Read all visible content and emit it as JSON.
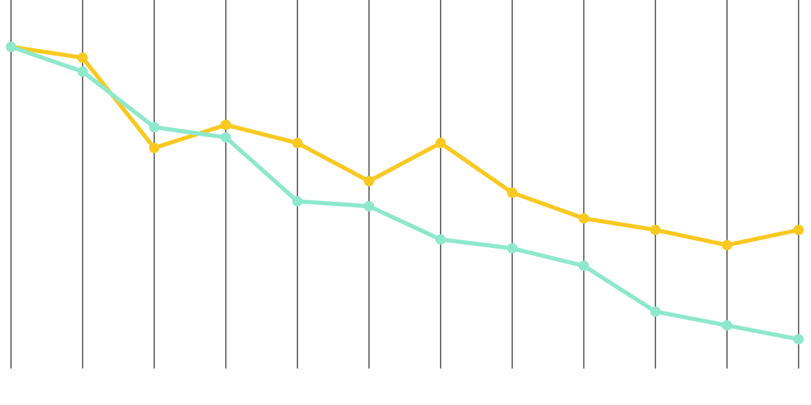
{
  "chart_data": {
    "type": "line",
    "title": "",
    "xlabel": "",
    "ylabel": "",
    "x": [
      1,
      2,
      3,
      4,
      5,
      6,
      7,
      8,
      9,
      10,
      11,
      12
    ],
    "ylim": [
      0,
      100
    ],
    "grid": "vertical",
    "legend": "none",
    "series": [
      {
        "color": "#F9C922",
        "values": [
          93.3,
          90,
          62.6,
          69.6,
          64.1,
          52.5,
          64.1,
          49,
          41.2,
          37.7,
          33.1,
          37.7
        ]
      },
      {
        "color": "#8EE8CC",
        "values": [
          93.3,
          85.8,
          68.9,
          65.8,
          46.4,
          44.9,
          34.8,
          32.1,
          26.8,
          12.9,
          8.7,
          4.5
        ]
      }
    ]
  }
}
